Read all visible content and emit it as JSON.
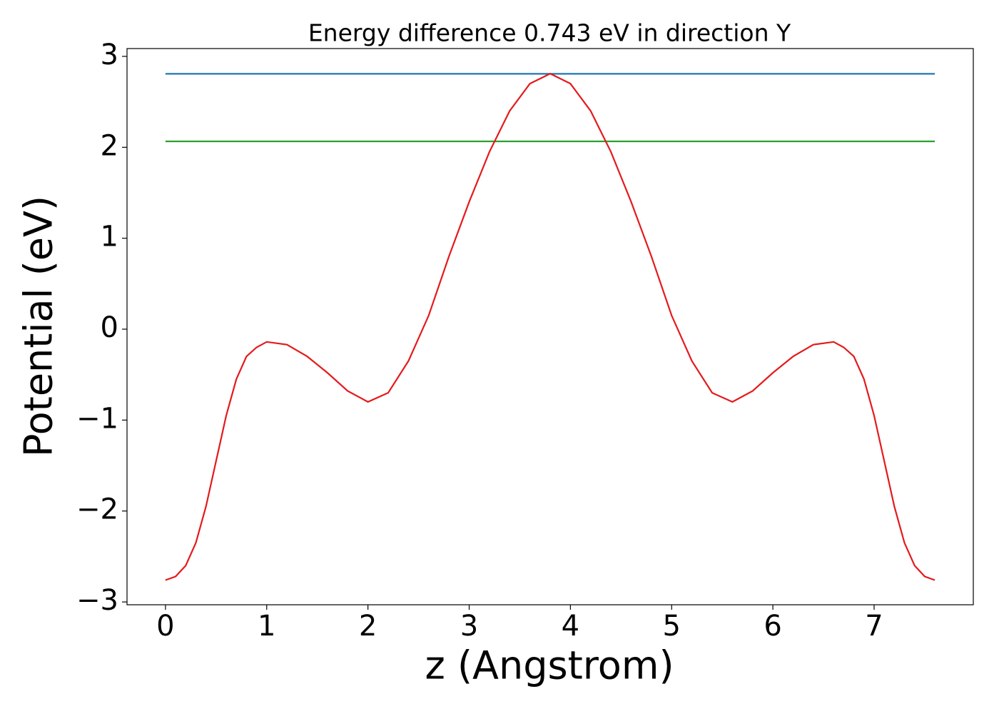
{
  "chart_data": {
    "type": "line",
    "title": "Energy difference 0.743 eV in direction Y",
    "xlabel": "z (Angstrom)",
    "ylabel": "Potential (eV)",
    "xlim": [
      -0.38,
      7.98
    ],
    "ylim": [
      -3.031,
      3.086
    ],
    "xticks": [
      0,
      1,
      2,
      3,
      4,
      5,
      6,
      7
    ],
    "yticks": [
      {
        "value": -3,
        "label": "−3"
      },
      {
        "value": -2,
        "label": "−2"
      },
      {
        "value": -1,
        "label": "−1"
      },
      0,
      1,
      2,
      3
    ],
    "grid": false,
    "series": [
      {
        "color": "#1f77b4",
        "x": [
          0,
          7.6
        ],
        "values": [
          2.808,
          2.808
        ]
      },
      {
        "color": "#2ca02c",
        "x": [
          0,
          7.6
        ],
        "values": [
          2.065,
          2.065
        ]
      },
      {
        "color": "#e41a1c",
        "x": [
          0,
          0.1,
          0.2,
          0.3,
          0.4,
          0.5,
          0.6,
          0.7,
          0.8,
          0.9,
          1.0,
          1.2,
          1.4,
          1.6,
          1.8,
          2.0,
          2.2,
          2.4,
          2.6,
          2.8,
          3.0,
          3.2,
          3.4,
          3.6,
          3.8,
          4.0,
          4.2,
          4.4,
          4.6,
          4.8,
          5.0,
          5.2,
          5.4,
          5.6,
          5.8,
          6.0,
          6.2,
          6.4,
          6.6,
          6.7,
          6.8,
          6.9,
          7.0,
          7.1,
          7.2,
          7.3,
          7.4,
          7.5,
          7.6
        ],
        "values": [
          -2.76,
          -2.72,
          -2.6,
          -2.35,
          -1.95,
          -1.45,
          -0.95,
          -0.55,
          -0.3,
          -0.2,
          -0.14,
          -0.17,
          -0.3,
          -0.48,
          -0.68,
          -0.8,
          -0.7,
          -0.35,
          0.15,
          0.8,
          1.4,
          1.95,
          2.4,
          2.7,
          2.81,
          2.7,
          2.4,
          1.95,
          1.4,
          0.8,
          0.15,
          -0.35,
          -0.7,
          -0.8,
          -0.68,
          -0.48,
          -0.3,
          -0.17,
          -0.14,
          -0.2,
          -0.3,
          -0.55,
          -0.95,
          -1.45,
          -1.95,
          -2.35,
          -2.6,
          -2.72,
          -2.76
        ]
      }
    ]
  }
}
